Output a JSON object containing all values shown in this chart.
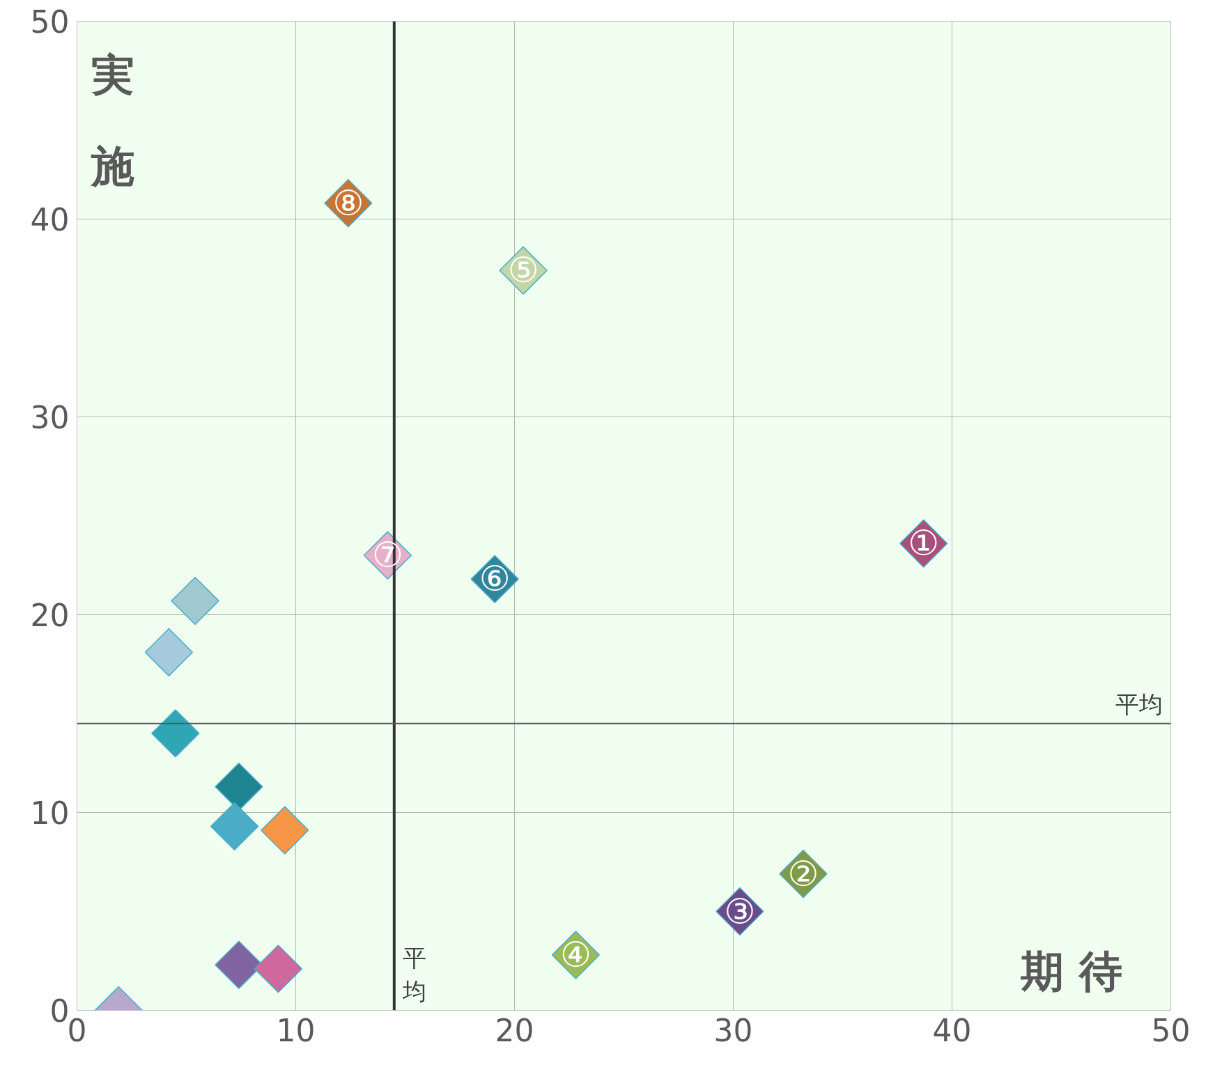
{
  "chart_data": {
    "type": "scatter",
    "xlabel": "期 待",
    "ylabel": "実施",
    "x": [
      38.7,
      33.2,
      30.3,
      22.8,
      20.4,
      19.1,
      14.2,
      12.4,
      5.4,
      4.2,
      4.5,
      7.4,
      7.2,
      9.5,
      7.4,
      9.2,
      1.9
    ],
    "values": [
      23.6,
      6.9,
      5.0,
      2.8,
      37.4,
      21.8,
      23.0,
      40.8,
      20.7,
      18.1,
      14.0,
      11.3,
      9.3,
      9.1,
      2.3,
      2.1,
      0.0
    ],
    "colors": [
      "#a8507a",
      "#7f9a48",
      "#6b4c8a",
      "#9bbb59",
      "#c3d6a7",
      "#31859c",
      "#e6b0cb",
      "#c87533",
      "#9fc8d0",
      "#a5cade",
      "#2ea6b3",
      "#1e8590",
      "#4aacc6",
      "#f79646",
      "#8064a2",
      "#d0689e",
      "#b7a9cc"
    ],
    "marker": "diamond",
    "xlim": [
      0,
      50
    ],
    "ylim": [
      0,
      50
    ],
    "xticks": [
      0,
      10,
      20,
      30,
      40,
      50
    ],
    "yticks": [
      0,
      10,
      20,
      30,
      40,
      50
    ],
    "grid": true,
    "ref_lines": [
      {
        "axis": "x",
        "value": 14.5,
        "label": "平均",
        "color": "#333333"
      },
      {
        "axis": "y",
        "value": 14.5,
        "label": "平均",
        "color": "#595959"
      }
    ],
    "annotations": [
      {
        "text": "①",
        "x": 38.7,
        "y": 23.6
      },
      {
        "text": "②",
        "x": 33.2,
        "y": 6.9
      },
      {
        "text": "③",
        "x": 30.3,
        "y": 5.0
      },
      {
        "text": "④",
        "x": 22.8,
        "y": 2.8
      },
      {
        "text": "⑤",
        "x": 20.4,
        "y": 37.4
      },
      {
        "text": "⑥",
        "x": 19.1,
        "y": 21.8
      },
      {
        "text": "⑦",
        "x": 14.2,
        "y": 23.0
      },
      {
        "text": "⑧",
        "x": 12.4,
        "y": 40.8
      }
    ]
  }
}
